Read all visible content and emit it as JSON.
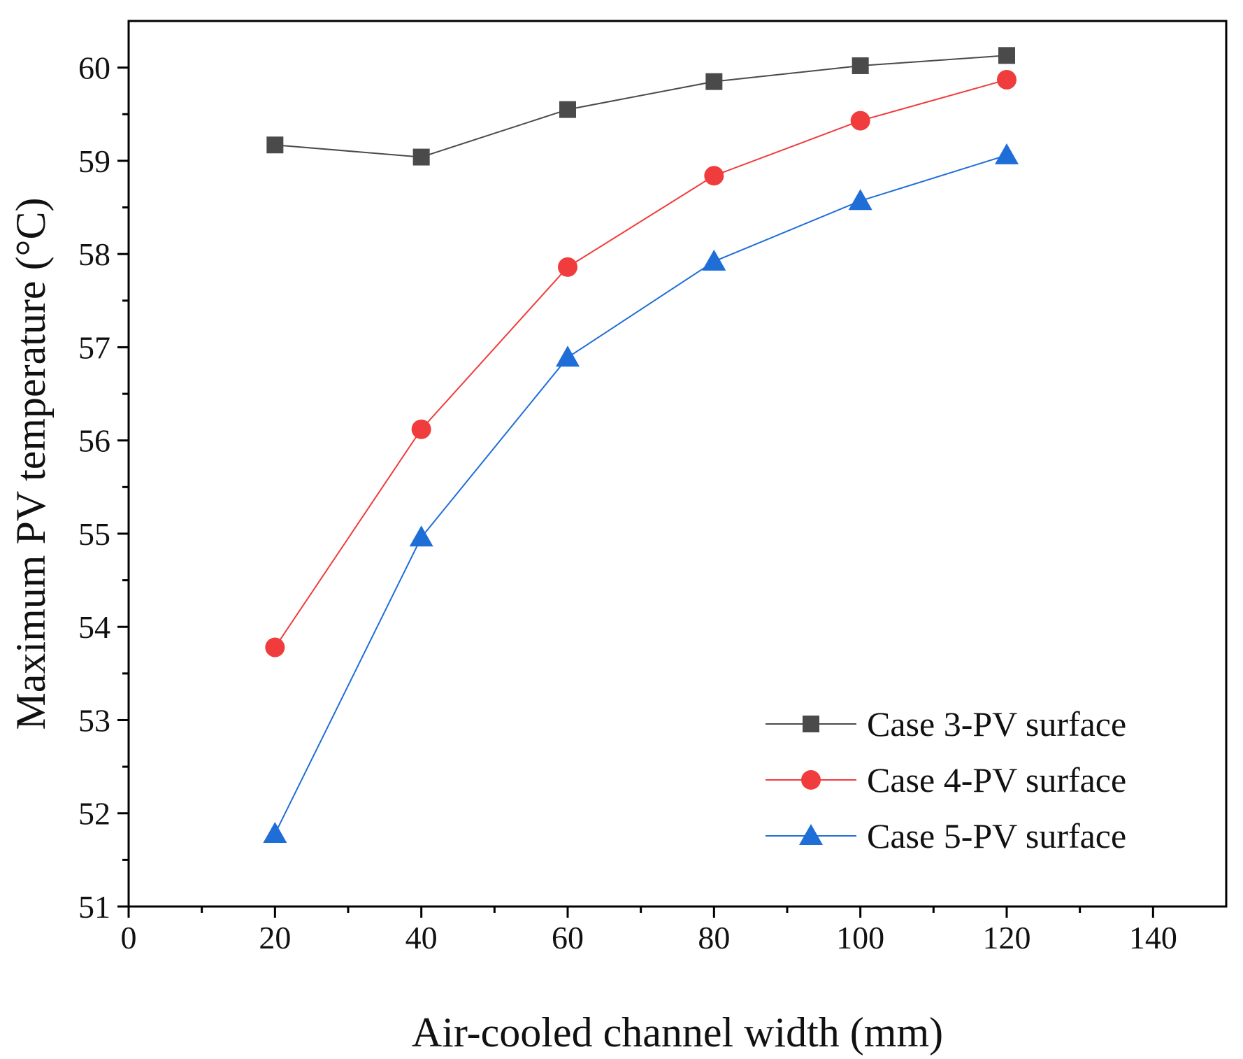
{
  "chart_data": {
    "type": "line",
    "xlabel": "Air-cooled channel width (mm)",
    "ylabel": "Maximum PV temperature (°C)",
    "xlim": [
      0,
      150
    ],
    "ylim": [
      51,
      60.5
    ],
    "xticks": [
      0,
      20,
      40,
      60,
      80,
      100,
      120,
      140
    ],
    "yticks": [
      51,
      52,
      53,
      54,
      55,
      56,
      57,
      58,
      59,
      60
    ],
    "x": [
      20,
      40,
      60,
      80,
      100,
      120
    ],
    "legend_position": "bottom-right",
    "grid": false,
    "series": [
      {
        "name": "Case 3-PV surface",
        "marker": "square",
        "color": "#4a4a4a",
        "values": [
          59.17,
          59.04,
          59.55,
          59.85,
          60.02,
          60.13
        ]
      },
      {
        "name": "Case 4-PV surface",
        "marker": "circle",
        "color": "#f03c3c",
        "values": [
          53.78,
          56.12,
          57.86,
          58.84,
          59.43,
          59.87
        ]
      },
      {
        "name": "Case 5-PV surface",
        "marker": "triangle",
        "color": "#1f6ed8",
        "values": [
          51.78,
          54.96,
          56.89,
          57.92,
          58.57,
          59.06
        ]
      }
    ]
  }
}
